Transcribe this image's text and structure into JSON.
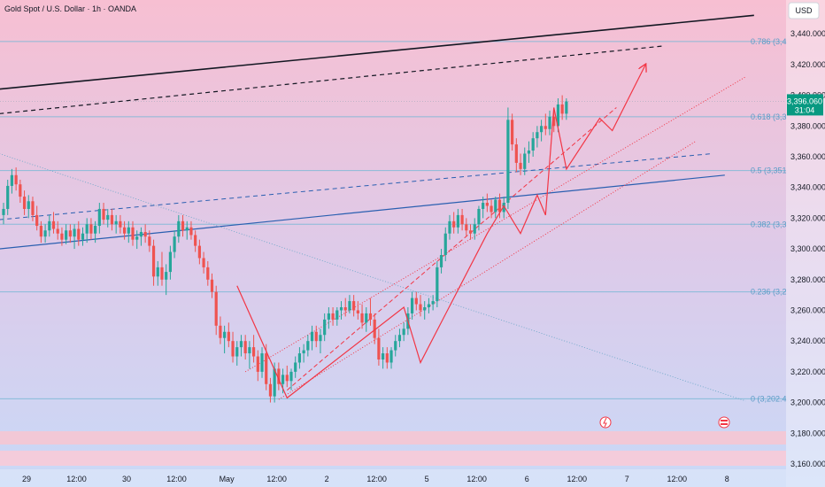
{
  "header": {
    "title": "Gold Spot / U.S. Dollar · 1h · OANDA"
  },
  "axis": {
    "currency_button": "USD"
  },
  "colors": {
    "up": "#26a69a",
    "down": "#ef5350",
    "trend_red": "#f23645",
    "trend_blue": "#2a5fb0",
    "trend_black": "#131722",
    "fib": "#7ab8d6",
    "price_tag": "#089981"
  },
  "fib_levels": [
    {
      "label": "0.786 (3,4",
      "price": 3435
    },
    {
      "label": "0.618 (3,3",
      "price": 3386
    },
    {
      "label": "0.5 (3,351",
      "price": 3351
    },
    {
      "label": "0.382 (3,3",
      "price": 3316
    },
    {
      "label": "0.236 (3,2",
      "price": 3272
    },
    {
      "label": "0 (3,202.4",
      "price": 3202.4
    }
  ],
  "price_tag": {
    "price": "3,396.060",
    "countdown": "31:04",
    "value": 3396.06
  },
  "chart_data": {
    "type": "candlestick",
    "title": "Gold Spot / U.S. Dollar · 1h · OANDA",
    "ylim": [
      3145,
      3462
    ],
    "y_ticks": [
      3440,
      3420,
      3400,
      3380,
      3360,
      3340,
      3320,
      3300,
      3280,
      3260,
      3240,
      3220,
      3200,
      3180,
      3160
    ],
    "y_tick_labels": [
      "3,440.000",
      "3,420.000",
      "3,400.000",
      "3,380.000",
      "3,360.000",
      "3,340.000",
      "3,320.000",
      "3,300.000",
      "3,280.000",
      "3,260.000",
      "3,240.000",
      "3,220.000",
      "3,200.000",
      "3,180.000",
      "3,160.000"
    ],
    "x_tick_labels": [
      "29",
      "12:00",
      "30",
      "12:00",
      "May",
      "12:00",
      "2",
      "12:00",
      "5",
      "12:00",
      "6",
      "12:00",
      "7",
      "12:00",
      "8"
    ],
    "x_tick_index": [
      0,
      12,
      24,
      36,
      48,
      60,
      72,
      84,
      96,
      108,
      120,
      132,
      144,
      156,
      168
    ],
    "candles": [
      [
        3322,
        3330,
        3316,
        3326
      ],
      [
        3326,
        3345,
        3322,
        3341
      ],
      [
        3341,
        3352,
        3336,
        3348
      ],
      [
        3348,
        3353,
        3338,
        3342
      ],
      [
        3342,
        3345,
        3330,
        3334
      ],
      [
        3334,
        3338,
        3322,
        3326
      ],
      [
        3326,
        3335,
        3320,
        3331
      ],
      [
        3331,
        3334,
        3318,
        3322
      ],
      [
        3322,
        3328,
        3312,
        3315
      ],
      [
        3315,
        3318,
        3304,
        3308
      ],
      [
        3308,
        3316,
        3304,
        3312
      ],
      [
        3312,
        3322,
        3308,
        3318
      ],
      [
        3318,
        3324,
        3310,
        3313
      ],
      [
        3313,
        3318,
        3306,
        3310
      ],
      [
        3310,
        3314,
        3302,
        3306
      ],
      [
        3306,
        3316,
        3303,
        3312
      ],
      [
        3312,
        3316,
        3304,
        3308
      ],
      [
        3308,
        3316,
        3300,
        3313
      ],
      [
        3313,
        3318,
        3302,
        3306
      ],
      [
        3306,
        3314,
        3302,
        3310
      ],
      [
        3310,
        3320,
        3304,
        3316
      ],
      [
        3316,
        3320,
        3306,
        3310
      ],
      [
        3310,
        3318,
        3304,
        3315
      ],
      [
        3315,
        3330,
        3310,
        3326
      ],
      [
        3326,
        3330,
        3316,
        3319
      ],
      [
        3319,
        3326,
        3314,
        3322
      ],
      [
        3322,
        3326,
        3312,
        3316
      ],
      [
        3316,
        3322,
        3310,
        3318
      ],
      [
        3318,
        3322,
        3310,
        3314
      ],
      [
        3314,
        3318,
        3306,
        3310
      ],
      [
        3310,
        3318,
        3304,
        3314
      ],
      [
        3314,
        3318,
        3302,
        3306
      ],
      [
        3306,
        3312,
        3300,
        3308
      ],
      [
        3308,
        3314,
        3302,
        3311
      ],
      [
        3311,
        3316,
        3304,
        3308
      ],
      [
        3308,
        3312,
        3298,
        3302
      ],
      [
        3302,
        3306,
        3276,
        3282
      ],
      [
        3282,
        3292,
        3276,
        3288
      ],
      [
        3288,
        3298,
        3276,
        3280
      ],
      [
        3280,
        3290,
        3270,
        3285
      ],
      [
        3285,
        3302,
        3280,
        3298
      ],
      [
        3298,
        3312,
        3294,
        3308
      ],
      [
        3308,
        3322,
        3304,
        3318
      ],
      [
        3318,
        3322,
        3308,
        3312
      ],
      [
        3312,
        3318,
        3306,
        3314
      ],
      [
        3314,
        3318,
        3306,
        3309
      ],
      [
        3309,
        3312,
        3298,
        3302
      ],
      [
        3302,
        3306,
        3290,
        3294
      ],
      [
        3294,
        3298,
        3284,
        3288
      ],
      [
        3288,
        3292,
        3276,
        3280
      ],
      [
        3280,
        3284,
        3268,
        3272
      ],
      [
        3272,
        3276,
        3244,
        3250
      ],
      [
        3250,
        3256,
        3238,
        3242
      ],
      [
        3242,
        3250,
        3232,
        3246
      ],
      [
        3246,
        3252,
        3236,
        3240
      ],
      [
        3240,
        3246,
        3226,
        3230
      ],
      [
        3230,
        3240,
        3224,
        3236
      ],
      [
        3236,
        3244,
        3230,
        3240
      ],
      [
        3240,
        3244,
        3228,
        3232
      ],
      [
        3232,
        3240,
        3222,
        3236
      ],
      [
        3236,
        3244,
        3226,
        3230
      ],
      [
        3230,
        3234,
        3214,
        3220
      ],
      [
        3220,
        3236,
        3216,
        3232
      ],
      [
        3232,
        3238,
        3208,
        3212
      ],
      [
        3212,
        3216,
        3200,
        3204
      ],
      [
        3204,
        3226,
        3200,
        3222
      ],
      [
        3222,
        3226,
        3208,
        3212
      ],
      [
        3212,
        3222,
        3206,
        3218
      ],
      [
        3218,
        3224,
        3210,
        3214
      ],
      [
        3214,
        3222,
        3208,
        3220
      ],
      [
        3220,
        3230,
        3216,
        3226
      ],
      [
        3226,
        3236,
        3222,
        3232
      ],
      [
        3232,
        3238,
        3226,
        3234
      ],
      [
        3234,
        3244,
        3230,
        3240
      ],
      [
        3240,
        3250,
        3234,
        3246
      ],
      [
        3246,
        3250,
        3236,
        3240
      ],
      [
        3240,
        3248,
        3232,
        3244
      ],
      [
        3244,
        3258,
        3240,
        3254
      ],
      [
        3254,
        3262,
        3248,
        3258
      ],
      [
        3258,
        3262,
        3250,
        3254
      ],
      [
        3254,
        3262,
        3250,
        3260
      ],
      [
        3260,
        3266,
        3254,
        3262
      ],
      [
        3262,
        3268,
        3256,
        3260
      ],
      [
        3260,
        3270,
        3258,
        3266
      ],
      [
        3266,
        3270,
        3256,
        3260
      ],
      [
        3260,
        3266,
        3254,
        3258
      ],
      [
        3258,
        3264,
        3248,
        3252
      ],
      [
        3252,
        3262,
        3246,
        3258
      ],
      [
        3258,
        3268,
        3250,
        3254
      ],
      [
        3254,
        3258,
        3238,
        3242
      ],
      [
        3242,
        3248,
        3224,
        3228
      ],
      [
        3228,
        3236,
        3222,
        3232
      ],
      [
        3232,
        3236,
        3222,
        3226
      ],
      [
        3226,
        3236,
        3222,
        3234
      ],
      [
        3234,
        3244,
        3230,
        3240
      ],
      [
        3240,
        3248,
        3236,
        3244
      ],
      [
        3244,
        3252,
        3240,
        3248
      ],
      [
        3248,
        3262,
        3244,
        3258
      ],
      [
        3258,
        3272,
        3254,
        3268
      ],
      [
        3268,
        3272,
        3260,
        3264
      ],
      [
        3264,
        3270,
        3256,
        3260
      ],
      [
        3260,
        3266,
        3254,
        3262
      ],
      [
        3262,
        3268,
        3258,
        3264
      ],
      [
        3264,
        3270,
        3260,
        3266
      ],
      [
        3266,
        3292,
        3262,
        3288
      ],
      [
        3288,
        3300,
        3284,
        3296
      ],
      [
        3296,
        3314,
        3292,
        3310
      ],
      [
        3310,
        3322,
        3306,
        3318
      ],
      [
        3318,
        3324,
        3310,
        3314
      ],
      [
        3314,
        3326,
        3310,
        3322
      ],
      [
        3322,
        3326,
        3312,
        3316
      ],
      [
        3316,
        3320,
        3308,
        3312
      ],
      [
        3312,
        3316,
        3306,
        3310
      ],
      [
        3310,
        3320,
        3306,
        3316
      ],
      [
        3316,
        3328,
        3312,
        3326
      ],
      [
        3326,
        3334,
        3320,
        3330
      ],
      [
        3330,
        3336,
        3324,
        3328
      ],
      [
        3328,
        3332,
        3320,
        3324
      ],
      [
        3324,
        3334,
        3320,
        3332
      ],
      [
        3332,
        3336,
        3320,
        3324
      ],
      [
        3324,
        3334,
        3320,
        3330
      ],
      [
        3330,
        3392,
        3326,
        3384
      ],
      [
        3384,
        3388,
        3364,
        3368
      ],
      [
        3368,
        3372,
        3350,
        3356
      ],
      [
        3356,
        3362,
        3348,
        3352
      ],
      [
        3352,
        3366,
        3348,
        3362
      ],
      [
        3362,
        3370,
        3356,
        3364
      ],
      [
        3364,
        3376,
        3360,
        3372
      ],
      [
        3372,
        3380,
        3366,
        3376
      ],
      [
        3376,
        3384,
        3370,
        3380
      ],
      [
        3380,
        3388,
        3374,
        3378
      ],
      [
        3378,
        3390,
        3374,
        3386
      ],
      [
        3386,
        3392,
        3376,
        3380
      ],
      [
        3380,
        3398,
        3376,
        3394
      ],
      [
        3394,
        3400,
        3384,
        3388
      ],
      [
        3388,
        3398,
        3384,
        3396
      ]
    ]
  }
}
